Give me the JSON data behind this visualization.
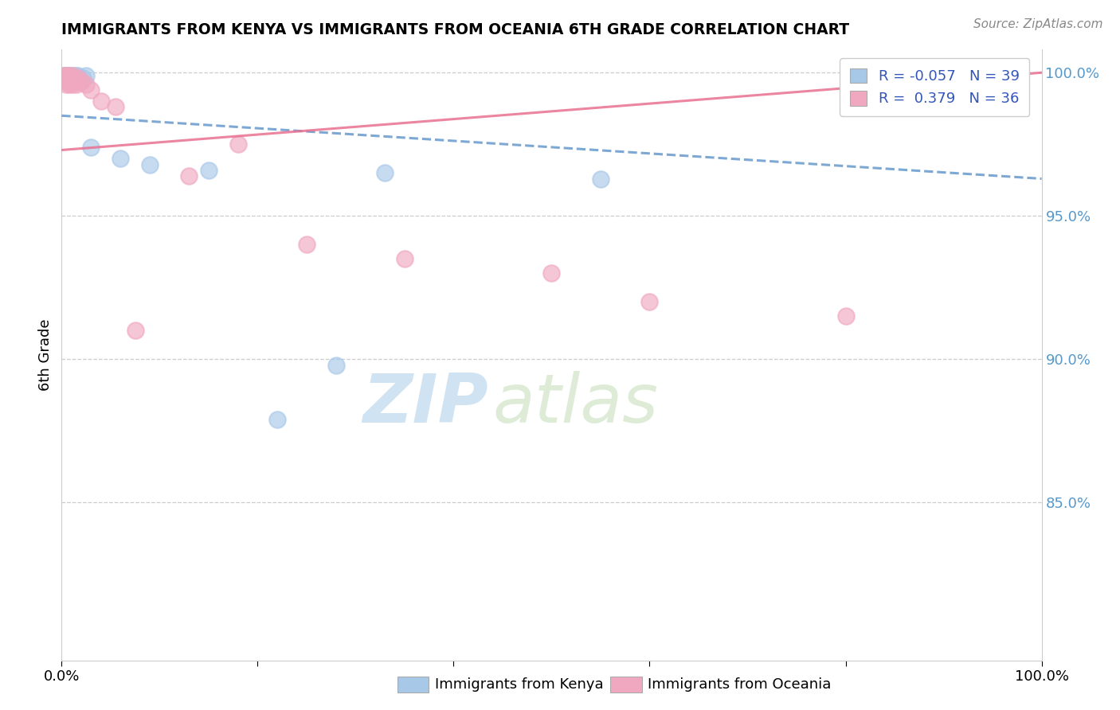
{
  "title": "IMMIGRANTS FROM KENYA VS IMMIGRANTS FROM OCEANIA 6TH GRADE CORRELATION CHART",
  "source": "Source: ZipAtlas.com",
  "ylabel": "6th Grade",
  "legend_label1": "R = -0.057   N = 39",
  "legend_label2": "R =  0.379   N = 36",
  "legend_bottom1": "Immigrants from Kenya",
  "legend_bottom2": "Immigrants from Oceania",
  "color_kenya": "#a8c8e8",
  "color_oceania": "#f0a8c0",
  "trendline_kenya_color": "#6699cc",
  "trendline_oceania_color": "#e87090",
  "xmin": 0.0,
  "xmax": 1.0,
  "ymin": 0.795,
  "ymax": 1.008,
  "right_yticks": [
    1.0,
    0.95,
    0.9,
    0.85
  ],
  "right_ytick_labels": [
    "100.0%",
    "95.0%",
    "90.0%",
    "85.0%"
  ],
  "watermark_zip": "ZIP",
  "watermark_atlas": "atlas",
  "kenya_x": [
    0.003,
    0.003,
    0.004,
    0.004,
    0.005,
    0.005,
    0.006,
    0.006,
    0.007,
    0.007,
    0.008,
    0.008,
    0.009,
    0.009,
    0.01,
    0.01,
    0.011,
    0.011,
    0.012,
    0.012,
    0.013,
    0.014,
    0.015,
    0.016,
    0.017,
    0.018,
    0.02,
    0.022,
    0.025,
    0.03,
    0.06,
    0.09,
    0.15,
    0.22,
    0.28,
    0.33,
    0.55,
    0.88,
    0.002
  ],
  "kenya_y": [
    0.999,
    0.998,
    0.999,
    0.998,
    0.997,
    0.999,
    0.999,
    0.998,
    0.997,
    0.998,
    0.999,
    0.998,
    0.997,
    0.999,
    0.998,
    0.999,
    0.997,
    0.998,
    0.999,
    0.998,
    0.997,
    0.999,
    0.998,
    0.997,
    0.999,
    0.998,
    0.997,
    0.998,
    0.999,
    0.974,
    0.97,
    0.968,
    0.966,
    0.879,
    0.898,
    0.965,
    0.963,
    1.0,
    0.999
  ],
  "oceania_x": [
    0.003,
    0.003,
    0.004,
    0.004,
    0.005,
    0.005,
    0.006,
    0.006,
    0.007,
    0.007,
    0.008,
    0.008,
    0.009,
    0.009,
    0.01,
    0.01,
    0.011,
    0.011,
    0.012,
    0.013,
    0.015,
    0.017,
    0.02,
    0.025,
    0.03,
    0.04,
    0.055,
    0.13,
    0.18,
    0.25,
    0.35,
    0.5,
    0.6,
    0.075,
    0.8,
    0.92
  ],
  "oceania_y": [
    0.999,
    0.998,
    0.999,
    0.997,
    0.998,
    0.996,
    0.999,
    0.997,
    0.998,
    0.997,
    0.996,
    0.999,
    0.998,
    0.997,
    0.998,
    0.997,
    0.996,
    0.999,
    0.998,
    0.997,
    0.996,
    0.998,
    0.997,
    0.996,
    0.994,
    0.99,
    0.988,
    0.964,
    0.975,
    0.94,
    0.935,
    0.93,
    0.92,
    0.91,
    0.915,
    1.0
  ],
  "kenya_trend_x": [
    0.0,
    1.0
  ],
  "kenya_trend_y": [
    0.985,
    0.963
  ],
  "oceania_trend_x": [
    0.0,
    1.0
  ],
  "oceania_trend_y": [
    0.973,
    1.0
  ]
}
